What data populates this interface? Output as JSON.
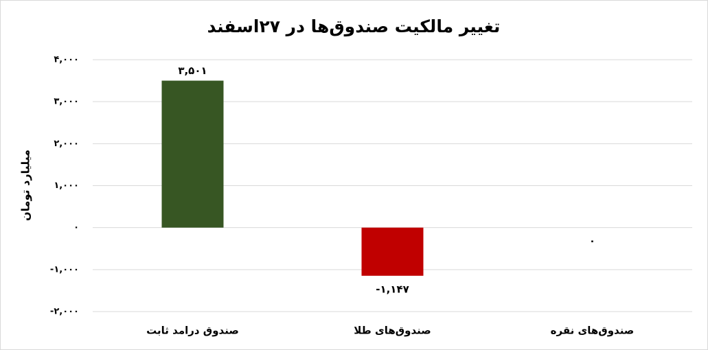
{
  "chart_data": {
    "type": "bar",
    "title": "تغییر مالکیت صندوق‌ها در ۲۷اسفند",
    "y_label": "میلیارد تومان",
    "categories": [
      "صندوق درامد ثابت",
      "صندوق‌های طلا",
      "صندوق‌های نقره"
    ],
    "values": [
      3501,
      -1147,
      0
    ],
    "value_labels": [
      "۳,۵۰۱",
      "-۱,۱۴۷",
      "۰"
    ],
    "colors": [
      "#375623",
      "#c00000",
      "#4472c4"
    ],
    "ylim": [
      -2000,
      4000
    ],
    "yticks": [
      {
        "value": -2000,
        "label": "-۲,۰۰۰"
      },
      {
        "value": -1000,
        "label": "-۱,۰۰۰"
      },
      {
        "value": 0,
        "label": "۰"
      },
      {
        "value": 1000,
        "label": "۱,۰۰۰"
      },
      {
        "value": 2000,
        "label": "۲,۰۰۰"
      },
      {
        "value": 3000,
        "label": "۳,۰۰۰"
      },
      {
        "value": 4000,
        "label": "۴,۰۰۰"
      }
    ],
    "grid": true
  }
}
